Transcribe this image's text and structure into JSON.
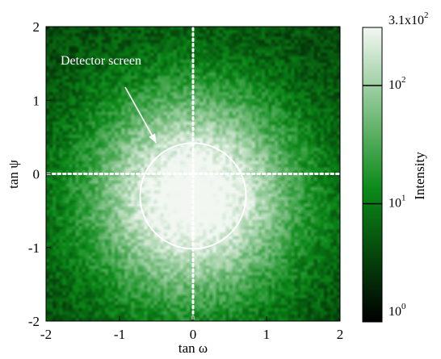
{
  "chart_data": {
    "type": "heatmap",
    "title": "",
    "xlabel": "tan ω",
    "ylabel": "tan ψ",
    "xlim": [
      -2,
      2
    ],
    "ylim": [
      -2,
      2
    ],
    "x_ticks": [
      {
        "value": -2,
        "label": "-2"
      },
      {
        "value": -1,
        "label": "-1"
      },
      {
        "value": 0,
        "label": "0"
      },
      {
        "value": 1,
        "label": "1"
      },
      {
        "value": 2,
        "label": "2"
      }
    ],
    "y_ticks": [
      {
        "value": -2,
        "label": "-2"
      },
      {
        "value": -1,
        "label": "-1"
      },
      {
        "value": 0,
        "label": "0"
      },
      {
        "value": 1,
        "label": "1"
      },
      {
        "value": 2,
        "label": "2"
      }
    ],
    "grid": false,
    "colorbar": {
      "label": "Intensity",
      "scale": "log",
      "min": 1,
      "max": 310,
      "ticks": [
        {
          "value": 1,
          "base": "10",
          "exp": "0"
        },
        {
          "value": 10,
          "base": "10",
          "exp": "1"
        },
        {
          "value": 100,
          "base": "10",
          "exp": "2"
        },
        {
          "value": 310,
          "base": "3.1x10",
          "exp": "2"
        }
      ],
      "color_low": "#000000",
      "color_mid": "#0b8a18",
      "color_high": "#f2f7f2"
    },
    "intensity_peak": {
      "x": 0.0,
      "y": -0.3,
      "value": 310
    },
    "reference_lines": {
      "x": 0,
      "y": 0,
      "style": "dotted",
      "color": "#ffffff"
    },
    "annotations": [
      {
        "type": "circle",
        "label": "Detector screen",
        "center": {
          "x": 0.0,
          "y": -0.3
        },
        "radius": 0.72,
        "color": "#ffffff",
        "arrow_to": {
          "x": -0.5,
          "y": 0.42
        }
      }
    ]
  }
}
